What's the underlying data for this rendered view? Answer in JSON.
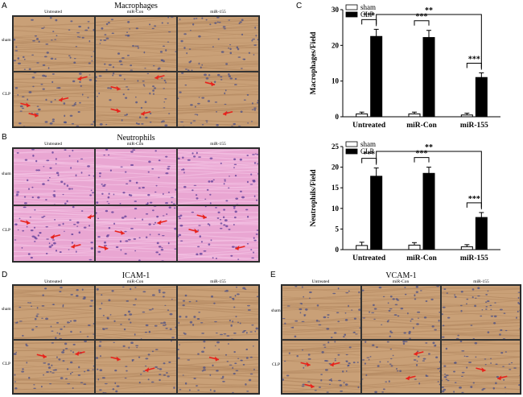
{
  "panels": {
    "A": {
      "letter": "A",
      "title": "Macrophages",
      "columns": [
        "Untreated",
        "miR-Con",
        "miR-155"
      ],
      "rows": [
        "sham",
        "CLP"
      ],
      "stain": "dab"
    },
    "B": {
      "letter": "B",
      "title": "Neutrophils",
      "columns": [
        "Untreated",
        "miR-Con",
        "miR-155"
      ],
      "rows": [
        "sham",
        "CLP"
      ],
      "stain": "he"
    },
    "D": {
      "letter": "D",
      "title": "ICAM-1",
      "columns": [
        "Untreated",
        "miR-Con",
        "miR-155"
      ],
      "rows": [
        "sham",
        "CLP"
      ],
      "stain": "dab"
    },
    "E": {
      "letter": "E",
      "title": "VCAM-1",
      "columns": [
        "Untreated",
        "miR-Con",
        "miR-155"
      ],
      "rows": [
        "sham",
        "CLP"
      ],
      "stain": "dab"
    }
  },
  "colors": {
    "dab_tissue": "#c9a077",
    "dab_nuclei": "#4a4f86",
    "he_tissue": "#e9a6d2",
    "he_nuclei": "#5a3a96",
    "arrow": "#e8221b",
    "bar_sham": "#ffffff",
    "bar_clp": "#000000"
  },
  "chart_data": [
    {
      "panel": "C",
      "type": "bar",
      "title": "",
      "xlabel": "",
      "ylabel": "Macrophages/Field",
      "categories": [
        "Untreated",
        "miR-Con",
        "miR-155"
      ],
      "ylim": [
        0,
        30
      ],
      "yticks": [
        "0",
        "10",
        "20",
        "30"
      ],
      "series": [
        {
          "name": "sham",
          "values": [
            0.8,
            0.8,
            0.5
          ],
          "errors": [
            0.5,
            0.5,
            0.5
          ]
        },
        {
          "name": "CLP",
          "values": [
            22.5,
            22.2,
            11
          ],
          "errors": [
            2,
            2,
            1.3
          ]
        }
      ],
      "legend": [
        "sham",
        "CLP"
      ],
      "legend_position": "top-left",
      "significance": [
        {
          "label": "***",
          "from": [
            0,
            0
          ],
          "to": [
            0,
            1
          ]
        },
        {
          "label": "***",
          "from": [
            1,
            0
          ],
          "to": [
            1,
            1
          ]
        },
        {
          "label": "***",
          "from": [
            2,
            0
          ],
          "to": [
            2,
            1
          ]
        },
        {
          "label": "**",
          "from": [
            0,
            1
          ],
          "to": [
            2,
            1
          ]
        }
      ]
    },
    {
      "panel": "C2",
      "type": "bar",
      "title": "",
      "xlabel": "",
      "ylabel": "Neutrophils/Field",
      "categories": [
        "Untreated",
        "miR-Con",
        "miR-155"
      ],
      "ylim": [
        0,
        25
      ],
      "yticks": [
        "0",
        "5",
        "10",
        "15",
        "20",
        "25"
      ],
      "series": [
        {
          "name": "sham",
          "values": [
            1.0,
            1.1,
            0.7
          ],
          "errors": [
            0.8,
            0.6,
            0.5
          ]
        },
        {
          "name": "CLP",
          "values": [
            17.8,
            18.5,
            7.8
          ],
          "errors": [
            2,
            1.5,
            1.2
          ]
        }
      ],
      "legend": [
        "sham",
        "CLP"
      ],
      "legend_position": "top-left",
      "significance": [
        {
          "label": "***",
          "from": [
            0,
            0
          ],
          "to": [
            0,
            1
          ]
        },
        {
          "label": "***",
          "from": [
            1,
            0
          ],
          "to": [
            1,
            1
          ]
        },
        {
          "label": "***",
          "from": [
            2,
            0
          ],
          "to": [
            2,
            1
          ]
        },
        {
          "label": "**",
          "from": [
            0,
            1
          ],
          "to": [
            2,
            1
          ]
        }
      ]
    }
  ],
  "chart_panel_letter": "C"
}
